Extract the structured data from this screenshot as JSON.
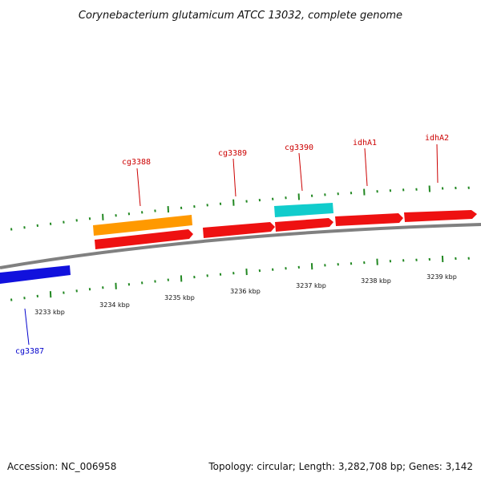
{
  "title": "Corynebacterium glutamicum ATCC 13032, complete genome",
  "accession_text": "Accession: NC_006958",
  "summary_text": "Topology: circular; Length: 3,282,708 bp; Genes: 3,142",
  "colors": {
    "backbone": "#808080",
    "tick": "#228822",
    "forward_gene": "#ee1111",
    "reverse_gene": "#1111dd",
    "orange_feature": "#ff9900",
    "cyan_feature": "#11cccc",
    "label_forward": "#cc0000",
    "label_reverse": "#0000cc"
  },
  "scale_labels": [
    "3233 kbp",
    "3234 kbp",
    "3235 kbp",
    "3236 kbp",
    "3237 kbp",
    "3238 kbp",
    "3239 kbp"
  ],
  "gene_labels": [
    {
      "name": "cg3387",
      "color_key": "label_reverse"
    },
    {
      "name": "cg3388",
      "color_key": "label_forward"
    },
    {
      "name": "cg3389",
      "color_key": "label_forward"
    },
    {
      "name": "cg3390",
      "color_key": "label_forward"
    },
    {
      "name": "idhA1",
      "color_key": "label_forward"
    },
    {
      "name": "idhA2",
      "color_key": "label_forward"
    }
  ]
}
